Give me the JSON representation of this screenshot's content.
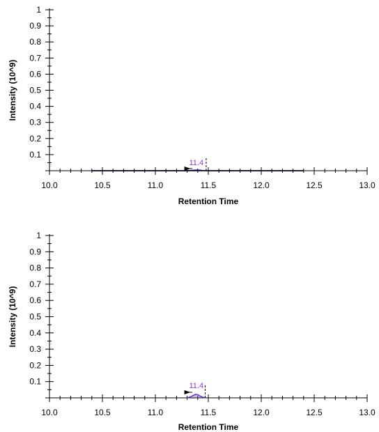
{
  "chart_data": [
    {
      "type": "line",
      "xlabel": "Retention Time",
      "ylabel": "Intensity (10^9)",
      "xlim": [
        10.0,
        13.0
      ],
      "ylim": [
        0,
        1
      ],
      "x_ticks": [
        "10.0",
        "10.5",
        "11.0",
        "11.5",
        "12.0",
        "12.5",
        "13.0"
      ],
      "y_ticks": [
        "0.1",
        "0.2",
        "0.3",
        "0.4",
        "0.5",
        "0.6",
        "0.7",
        "0.8",
        "0.9",
        "1"
      ],
      "series": [
        {
          "color": "#0000cc",
          "x": [
            10.4,
            11.3,
            11.35,
            11.38,
            11.42,
            11.45,
            11.5,
            12.4
          ],
          "y": [
            0,
            0,
            0.002,
            0.004,
            0.003,
            0.001,
            0,
            0
          ]
        },
        {
          "color": "#000000",
          "x": [
            10.4,
            12.4
          ],
          "y": [
            0,
            0
          ]
        }
      ],
      "peak_label": {
        "text": "11.4",
        "x": 11.4,
        "color": "#9933cc"
      },
      "reference_line_x": 11.48,
      "boundary_marker_x": 11.3
    },
    {
      "type": "line",
      "xlabel": "Retention Time",
      "ylabel": "Intensity (10^9)",
      "xlim": [
        10.0,
        13.0
      ],
      "ylim": [
        0,
        1
      ],
      "x_ticks": [
        "10.0",
        "10.5",
        "11.0",
        "11.5",
        "12.0",
        "12.5",
        "13.0"
      ],
      "y_ticks": [
        "0.1",
        "0.2",
        "0.3",
        "0.4",
        "0.5",
        "0.6",
        "0.7",
        "0.8",
        "0.9",
        "1"
      ],
      "series": [
        {
          "color": "#6633cc",
          "x": [
            11.3,
            11.33,
            11.36,
            11.38,
            11.4,
            11.42,
            11.45,
            11.48
          ],
          "y": [
            0,
            0.006,
            0.016,
            0.022,
            0.02,
            0.012,
            0.004,
            0
          ]
        }
      ],
      "peak_label": {
        "text": "11.4",
        "x": 11.4,
        "color": "#9933cc"
      },
      "reference_line_x": 11.47,
      "boundary_marker_x": 11.3
    }
  ]
}
